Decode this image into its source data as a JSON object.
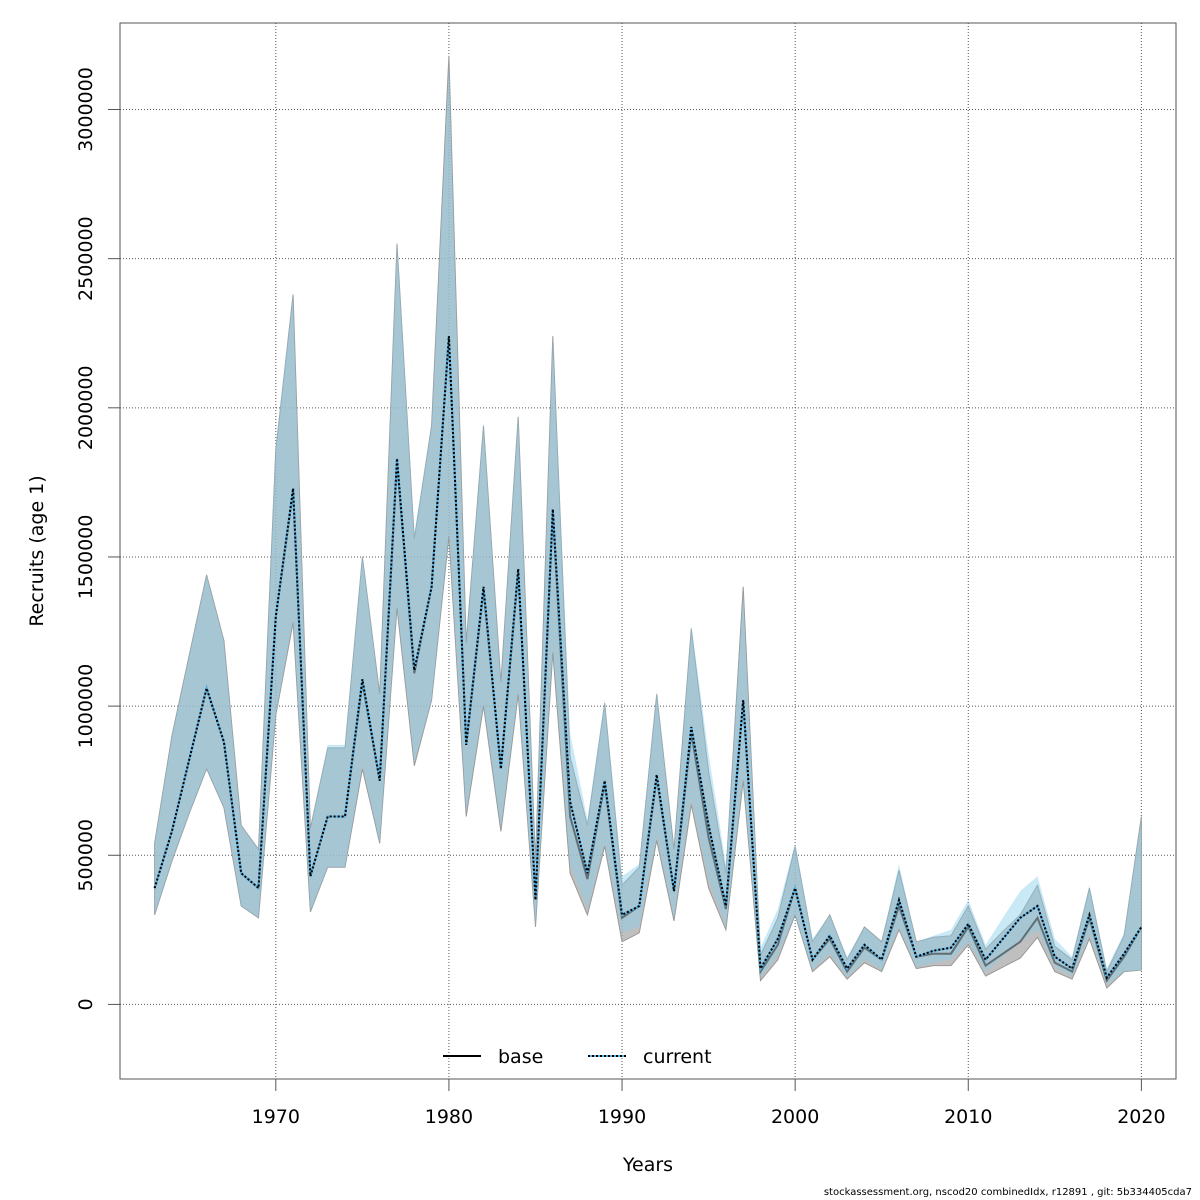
{
  "chart_data": {
    "type": "line",
    "title": "",
    "xlabel": "Years",
    "ylabel": "Recruits (age 1)",
    "xlim": [
      1961,
      2022
    ],
    "ylim": [
      -250000,
      3290000
    ],
    "x_ticks": [
      1970,
      1980,
      1990,
      2000,
      2010,
      2020
    ],
    "y_ticks": [
      0,
      500000,
      1000000,
      1500000,
      2000000,
      2500000,
      3000000
    ],
    "y_tick_labels": [
      "0",
      "500000",
      "1000000",
      "1500000",
      "2000000",
      "2500000",
      "3000000"
    ],
    "x_tick_labels": [
      "1970",
      "1980",
      "1990",
      "2000",
      "2010",
      "2020"
    ],
    "grid": true,
    "legend": {
      "position": "bottom-center",
      "entries": [
        {
          "label": "base",
          "style": "solid",
          "color": "#000000"
        },
        {
          "label": "current",
          "style": "dotted",
          "color": "#000000",
          "color2": "#56B4E9"
        }
      ]
    },
    "x": [
      1963,
      1964,
      1965,
      1966,
      1967,
      1968,
      1969,
      1970,
      1971,
      1972,
      1973,
      1974,
      1975,
      1976,
      1977,
      1978,
      1979,
      1980,
      1981,
      1982,
      1983,
      1984,
      1985,
      1986,
      1987,
      1988,
      1989,
      1990,
      1991,
      1992,
      1993,
      1994,
      1995,
      1996,
      1997,
      1998,
      1999,
      2000,
      2001,
      2002,
      2003,
      2004,
      2005,
      2006,
      2007,
      2008,
      2009,
      2010,
      2011,
      2012,
      2013,
      2014,
      2015,
      2016,
      2017,
      2018,
      2019,
      2020
    ],
    "series": [
      {
        "name": "base",
        "values": [
          390000,
          580000,
          820000,
          1060000,
          880000,
          440000,
          390000,
          1300000,
          1720000,
          430000,
          630000,
          630000,
          1080000,
          750000,
          1820000,
          1110000,
          1400000,
          2240000,
          870000,
          1390000,
          790000,
          1450000,
          350000,
          1650000,
          630000,
          420000,
          740000,
          290000,
          330000,
          760000,
          380000,
          910000,
          560000,
          320000,
          1020000,
          110000,
          200000,
          390000,
          150000,
          220000,
          110000,
          190000,
          150000,
          330000,
          160000,
          170000,
          170000,
          260000,
          130000,
          170000,
          210000,
          290000,
          140000,
          110000,
          290000,
          80000,
          160000,
          260000
        ],
        "lower": [
          300000,
          480000,
          640000,
          790000,
          660000,
          330000,
          290000,
          970000,
          1280000,
          310000,
          460000,
          460000,
          790000,
          540000,
          1330000,
          800000,
          1020000,
          1570000,
          630000,
          1000000,
          580000,
          1040000,
          260000,
          1180000,
          440000,
          300000,
          530000,
          210000,
          240000,
          550000,
          280000,
          670000,
          390000,
          250000,
          750000,
          80000,
          150000,
          300000,
          110000,
          160000,
          85000,
          140000,
          110000,
          250000,
          120000,
          130000,
          130000,
          200000,
          95000,
          125000,
          155000,
          225000,
          110000,
          85000,
          220000,
          55000,
          110000,
          115000
        ],
        "upper": [
          540000,
          900000,
          1170000,
          1440000,
          1220000,
          600000,
          520000,
          1860000,
          2380000,
          590000,
          860000,
          860000,
          1500000,
          1040000,
          2550000,
          1560000,
          1940000,
          3180000,
          1210000,
          1940000,
          1080000,
          1970000,
          480000,
          2240000,
          830000,
          600000,
          1010000,
          400000,
          460000,
          1040000,
          520000,
          1260000,
          780000,
          440000,
          1400000,
          165000,
          290000,
          530000,
          210000,
          300000,
          150000,
          260000,
          210000,
          450000,
          210000,
          225000,
          230000,
          330000,
          185000,
          245000,
          300000,
          400000,
          195000,
          150000,
          390000,
          110000,
          230000,
          630000
        ]
      },
      {
        "name": "current",
        "values": [
          390000,
          580000,
          820000,
          1060000,
          880000,
          440000,
          390000,
          1300000,
          1730000,
          430000,
          630000,
          630000,
          1090000,
          750000,
          1830000,
          1120000,
          1400000,
          2240000,
          870000,
          1400000,
          790000,
          1460000,
          350000,
          1660000,
          680000,
          440000,
          750000,
          300000,
          330000,
          770000,
          380000,
          930000,
          600000,
          330000,
          1020000,
          120000,
          220000,
          390000,
          150000,
          230000,
          120000,
          200000,
          150000,
          350000,
          160000,
          180000,
          190000,
          270000,
          150000,
          220000,
          290000,
          330000,
          160000,
          120000,
          300000,
          90000,
          170000,
          260000
        ],
        "lower": [
          300000,
          480000,
          640000,
          790000,
          660000,
          330000,
          290000,
          970000,
          1290000,
          310000,
          460000,
          460000,
          800000,
          540000,
          1340000,
          810000,
          1020000,
          1580000,
          640000,
          1010000,
          590000,
          1050000,
          260000,
          1200000,
          470000,
          320000,
          540000,
          240000,
          260000,
          560000,
          290000,
          690000,
          420000,
          260000,
          760000,
          90000,
          165000,
          300000,
          115000,
          170000,
          90000,
          150000,
          115000,
          260000,
          125000,
          140000,
          150000,
          210000,
          110000,
          160000,
          210000,
          250000,
          125000,
          95000,
          235000,
          65000,
          110000,
          115000
        ],
        "upper": [
          540000,
          900000,
          1170000,
          1440000,
          1220000,
          600000,
          520000,
          1880000,
          2380000,
          590000,
          870000,
          870000,
          1510000,
          1040000,
          2560000,
          1580000,
          1940000,
          3150000,
          1210000,
          1950000,
          1080000,
          1980000,
          480000,
          2240000,
          910000,
          620000,
          1020000,
          430000,
          470000,
          1050000,
          520000,
          1270000,
          840000,
          470000,
          1380000,
          190000,
          320000,
          540000,
          220000,
          300000,
          160000,
          260000,
          210000,
          470000,
          210000,
          230000,
          250000,
          350000,
          200000,
          290000,
          380000,
          430000,
          220000,
          160000,
          400000,
          120000,
          240000,
          630000
        ]
      }
    ]
  },
  "footer": "stockassessment.org, nscod20  combinedIdx, r12891 , git: 5b334405cda7",
  "colors": {
    "base_band": "#a9a9a9",
    "current_band": "#87CEEB",
    "overlap": "#a6c6d6",
    "grid": "#555555",
    "axis": "#555555"
  }
}
